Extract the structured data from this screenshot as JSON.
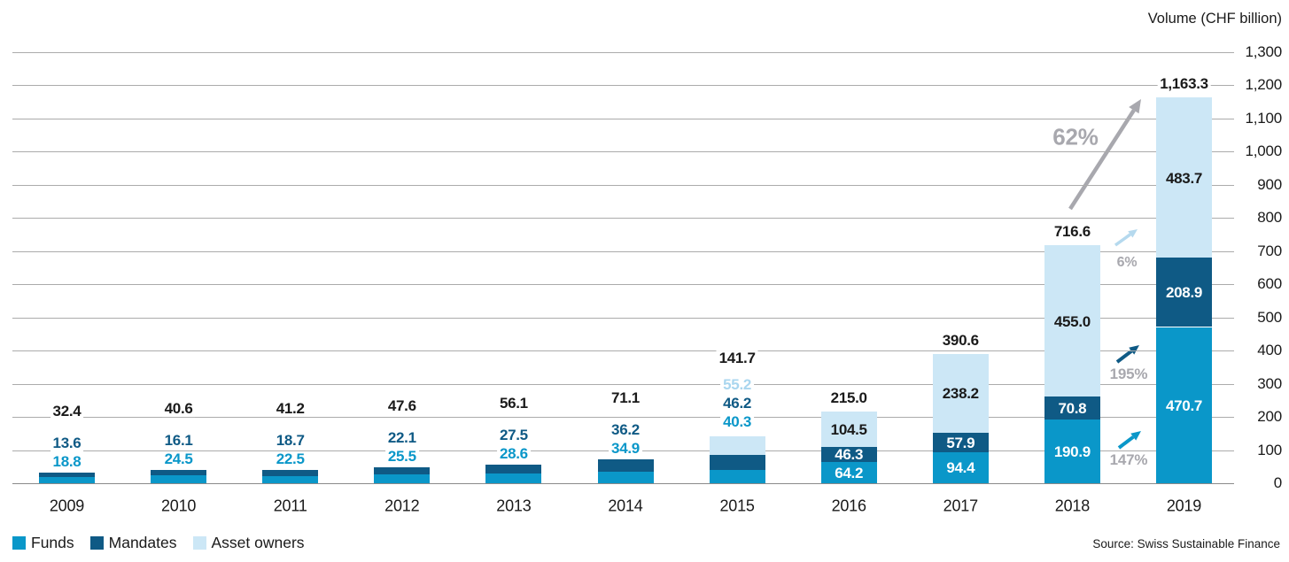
{
  "title": "Volume (CHF billion)",
  "source": "Source: Swiss Sustainable Finance",
  "colors": {
    "funds": "#0a97c9",
    "mandates": "#0f5a85",
    "asset_owners": "#cce7f6",
    "asset_owners_label_light": "#a9d6ef",
    "annotation_gray": "#a8a8ae",
    "grid": "#ababab",
    "text": "#1a1a1a"
  },
  "legend": [
    {
      "label": "Funds",
      "key": "funds"
    },
    {
      "label": "Mandates",
      "key": "mandates"
    },
    {
      "label": "Asset owners",
      "key": "asset_owners"
    }
  ],
  "chart_data": {
    "type": "bar",
    "stacked": true,
    "title": "Volume (CHF billion)",
    "categories": [
      "2009",
      "2010",
      "2011",
      "2012",
      "2013",
      "2014",
      "2015",
      "2016",
      "2017",
      "2018",
      "2019"
    ],
    "series": [
      {
        "name": "Funds",
        "key": "funds",
        "values": [
          18.8,
          24.5,
          22.5,
          25.5,
          28.6,
          34.9,
          40.3,
          64.2,
          94.4,
          190.9,
          470.7
        ]
      },
      {
        "name": "Mandates",
        "key": "mandates",
        "values": [
          13.6,
          16.1,
          18.7,
          22.1,
          27.5,
          36.2,
          46.2,
          46.3,
          57.9,
          70.8,
          208.9
        ]
      },
      {
        "name": "Asset owners",
        "key": "asset_owners",
        "values": [
          null,
          null,
          null,
          null,
          null,
          null,
          55.2,
          104.5,
          238.2,
          455.0,
          483.7
        ]
      }
    ],
    "totals": [
      32.4,
      40.6,
      41.2,
      47.6,
      56.1,
      71.1,
      141.7,
      215.0,
      390.6,
      716.6,
      1163.3
    ],
    "total_labels": [
      "32.4",
      "40.6",
      "41.2",
      "47.6",
      "56.1",
      "71.1",
      "141.7",
      "215.0",
      "390.6",
      "716.6",
      "1,163.3"
    ],
    "ylabel": "Volume (CHF billion)",
    "ylim": [
      0,
      1300
    ],
    "ytick_step": 100,
    "ytick_labels": [
      "0",
      "100",
      "200",
      "300",
      "400",
      "500",
      "600",
      "700",
      "800",
      "900",
      "1,000",
      "1,100",
      "1,200",
      "1,300"
    ],
    "grid": true,
    "legend_position": "bottom-left",
    "annotations": [
      {
        "label": "62%",
        "series": "Total",
        "applies_to": "total growth 2018 to 2019"
      },
      {
        "label": "6%",
        "series": "Asset owners",
        "applies_to": "asset owners growth 2018 to 2019"
      },
      {
        "label": "195%",
        "series": "Mandates",
        "applies_to": "mandates growth 2018 to 2019"
      },
      {
        "label": "147%",
        "series": "Funds",
        "applies_to": "funds growth 2018 to 2019"
      }
    ]
  }
}
